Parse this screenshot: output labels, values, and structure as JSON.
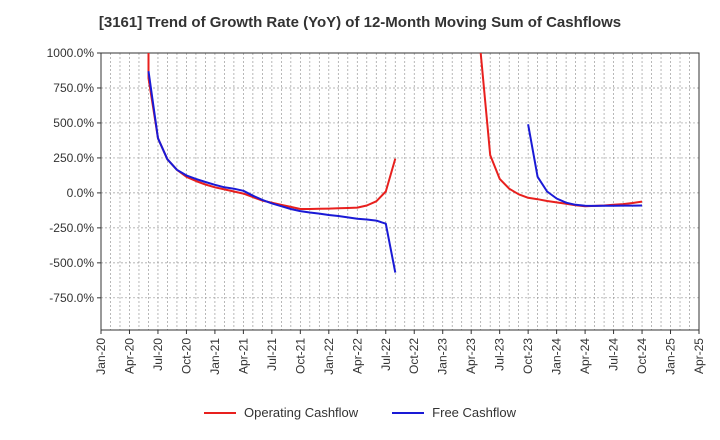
{
  "chart_data": {
    "type": "line",
    "title": "[3161]  Trend of Growth Rate (YoY) of 12-Month Moving Sum of Cashflows",
    "xlabel": "",
    "ylabel": "",
    "xlim": [
      "2020-01",
      "2025-04"
    ],
    "ylim": [
      -980,
      1000
    ],
    "y_ticks": [
      1000,
      750,
      500,
      250,
      0,
      -250,
      -500,
      -750
    ],
    "y_tick_labels": [
      "1000.0%",
      "750.0%",
      "500.0%",
      "250.0%",
      "0.0%",
      "-250.0%",
      "-500.0%",
      "-750.0%"
    ],
    "x_ticks": [
      "2020-01",
      "2020-04",
      "2020-07",
      "2020-10",
      "2021-01",
      "2021-04",
      "2021-07",
      "2021-10",
      "2022-01",
      "2022-04",
      "2022-07",
      "2022-10",
      "2023-01",
      "2023-04",
      "2023-07",
      "2023-10",
      "2024-01",
      "2024-04",
      "2024-07",
      "2024-10",
      "2025-01",
      "2025-04"
    ],
    "x_tick_labels": [
      "Jan-20",
      "Apr-20",
      "Jul-20",
      "Oct-20",
      "Jan-21",
      "Apr-21",
      "Jul-21",
      "Oct-21",
      "Jan-22",
      "Apr-22",
      "Jul-22",
      "Oct-22",
      "Jan-23",
      "Apr-23",
      "Jul-23",
      "Oct-23",
      "Jan-24",
      "Apr-24",
      "Jul-24",
      "Oct-24",
      "Jan-25",
      "Apr-25"
    ],
    "grid": true,
    "legend_position": "bottom",
    "series": [
      {
        "name": "Operating Cashflow",
        "color": "#e8201e",
        "segments": [
          [
            [
              "2020-06",
              1000
            ],
            [
              "2020-06",
              820
            ],
            [
              "2020-07",
              390
            ],
            [
              "2020-08",
              240
            ],
            [
              "2020-09",
              165
            ],
            [
              "2020-10",
              115
            ],
            [
              "2020-11",
              85
            ],
            [
              "2020-12",
              60
            ],
            [
              "2021-01",
              40
            ],
            [
              "2021-02",
              25
            ],
            [
              "2021-03",
              10
            ],
            [
              "2021-04",
              -5
            ],
            [
              "2021-05",
              -30
            ],
            [
              "2021-06",
              -55
            ],
            [
              "2021-07",
              -70
            ],
            [
              "2021-08",
              -85
            ],
            [
              "2021-09",
              -100
            ],
            [
              "2021-10",
              -115
            ],
            [
              "2021-11",
              -115
            ],
            [
              "2021-12",
              -113
            ],
            [
              "2022-01",
              -112
            ],
            [
              "2022-02",
              -110
            ],
            [
              "2022-03",
              -108
            ],
            [
              "2022-04",
              -105
            ],
            [
              "2022-05",
              -90
            ],
            [
              "2022-06",
              -60
            ],
            [
              "2022-07",
              10
            ],
            [
              "2022-08",
              245
            ]
          ],
          [
            [
              "2023-05",
              1000
            ],
            [
              "2023-06",
              270
            ],
            [
              "2023-07",
              100
            ],
            [
              "2023-08",
              30
            ],
            [
              "2023-09",
              -10
            ],
            [
              "2023-10",
              -35
            ],
            [
              "2023-11",
              -45
            ],
            [
              "2023-12",
              -58
            ],
            [
              "2024-01",
              -68
            ],
            [
              "2024-02",
              -78
            ],
            [
              "2024-03",
              -88
            ],
            [
              "2024-04",
              -95
            ],
            [
              "2024-05",
              -93
            ],
            [
              "2024-06",
              -90
            ],
            [
              "2024-07",
              -85
            ],
            [
              "2024-08",
              -80
            ],
            [
              "2024-09",
              -72
            ],
            [
              "2024-10",
              -62
            ]
          ]
        ]
      },
      {
        "name": "Free Cashflow",
        "color": "#1a1ad6",
        "segments": [
          [
            [
              "2020-06",
              870
            ],
            [
              "2020-07",
              390
            ],
            [
              "2020-08",
              240
            ],
            [
              "2020-09",
              165
            ],
            [
              "2020-10",
              125
            ],
            [
              "2020-11",
              100
            ],
            [
              "2020-12",
              78
            ],
            [
              "2021-01",
              58
            ],
            [
              "2021-02",
              40
            ],
            [
              "2021-03",
              30
            ],
            [
              "2021-04",
              15
            ],
            [
              "2021-05",
              -20
            ],
            [
              "2021-06",
              -50
            ],
            [
              "2021-07",
              -75
            ],
            [
              "2021-08",
              -95
            ],
            [
              "2021-09",
              -115
            ],
            [
              "2021-10",
              -130
            ],
            [
              "2021-11",
              -140
            ],
            [
              "2021-12",
              -148
            ],
            [
              "2022-01",
              -158
            ],
            [
              "2022-02",
              -165
            ],
            [
              "2022-03",
              -175
            ],
            [
              "2022-04",
              -185
            ],
            [
              "2022-05",
              -190
            ],
            [
              "2022-06",
              -198
            ],
            [
              "2022-07",
              -220
            ],
            [
              "2022-08",
              -570
            ]
          ],
          [
            [
              "2023-10",
              490
            ],
            [
              "2023-11",
              115
            ],
            [
              "2023-12",
              10
            ],
            [
              "2024-01",
              -40
            ],
            [
              "2024-02",
              -70
            ],
            [
              "2024-03",
              -85
            ],
            [
              "2024-04",
              -92
            ],
            [
              "2024-05",
              -93
            ],
            [
              "2024-06",
              -92
            ],
            [
              "2024-07",
              -92
            ],
            [
              "2024-08",
              -91
            ],
            [
              "2024-09",
              -91
            ],
            [
              "2024-10",
              -90
            ]
          ]
        ]
      }
    ]
  }
}
